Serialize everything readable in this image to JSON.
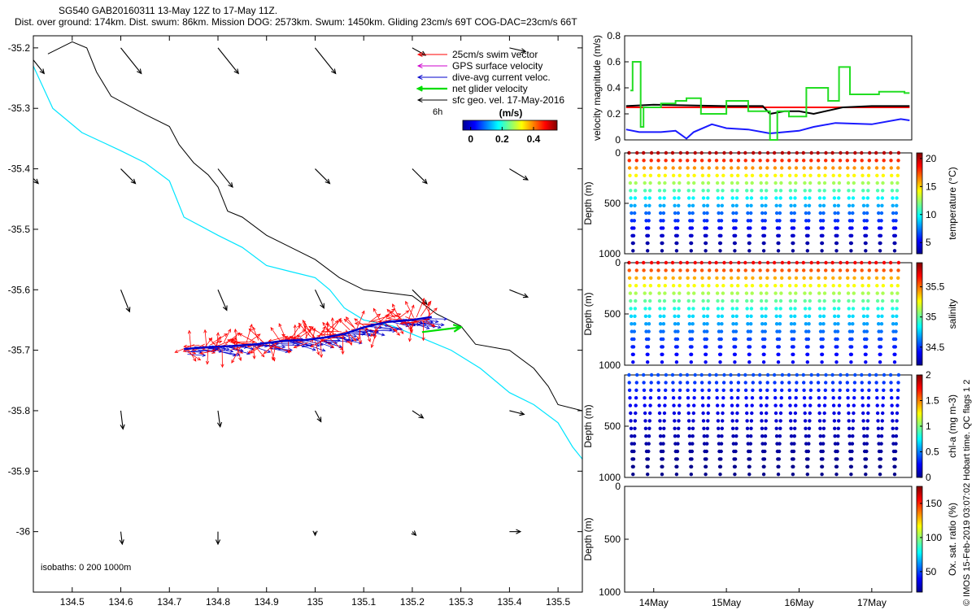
{
  "header": {
    "line1": "SG540 GAB20160311 13-May 12Z to 17-May 11Z.",
    "line2": "Dist. over ground: 174km. Dist. swum: 86km. Mission DOG: 2573km. Swum: 1450km. Gliding 23cm/s 69T COG-DAC=23cm/s 66T"
  },
  "colors": {
    "swim": "#ff0000",
    "gps": "#cc00cc",
    "dac": "#0000cc",
    "net": "#00dd00",
    "geo": "#000000",
    "isobath200": "#00e5ff",
    "isobath1000": "#000000",
    "vel_red": "#ff0000",
    "vel_black": "#000000",
    "vel_blue": "#1a1aff",
    "vel_green": "#22dd22"
  },
  "chart_data": [
    {
      "type": "scatter",
      "name": "map",
      "xlim": [
        134.42,
        135.55
      ],
      "ylim": [
        -36.1,
        -35.18
      ],
      "xticks": [
        134.5,
        134.6,
        134.7,
        134.8,
        134.9,
        135.0,
        135.1,
        135.2,
        135.3,
        135.4,
        135.5
      ],
      "xtick_labels": [
        "134.5",
        "134.6",
        "134.7",
        "134.8",
        "134.9",
        "135",
        "135.1",
        "135.2",
        "135.3",
        "135.4",
        "135.5"
      ],
      "yticks": [
        -35.2,
        -35.3,
        -35.4,
        -35.5,
        -35.6,
        -35.7,
        -35.8,
        -35.9,
        -36.0
      ],
      "ytick_labels": [
        "-35.2",
        "-35.3",
        "-35.4",
        "-35.5",
        "-35.6",
        "-35.7",
        "-35.8",
        "-35.9",
        "-36"
      ],
      "legend": {
        "position": "top-right",
        "entries": [
          {
            "label": "25cm/s swim vector",
            "color_key": "swim"
          },
          {
            "label": "GPS surface velocity",
            "color_key": "gps"
          },
          {
            "label": "dive-avg current veloc.",
            "color_key": "dac"
          },
          {
            "label": "net glider velocity",
            "color_key": "net"
          },
          {
            "label": "sfc geo. vel. 17-May-2016",
            "color_key": "geo"
          }
        ],
        "scale_label": "6h"
      },
      "colorbar": {
        "title": "(m/s)",
        "ticks": [
          0,
          0.2,
          0.4
        ],
        "tick_labels": [
          "0",
          "0.2",
          "0.4"
        ],
        "range": [
          -0.05,
          0.55
        ]
      },
      "isobath_label": "isobaths: 0   200  1000m",
      "isobath_200m": [
        [
          134.42,
          -35.23
        ],
        [
          134.46,
          -35.3
        ],
        [
          134.52,
          -35.34
        ],
        [
          134.6,
          -35.37
        ],
        [
          134.65,
          -35.39
        ],
        [
          134.7,
          -35.42
        ],
        [
          134.73,
          -35.48
        ],
        [
          134.8,
          -35.51
        ],
        [
          134.85,
          -35.53
        ],
        [
          134.9,
          -35.56
        ],
        [
          134.95,
          -35.57
        ],
        [
          135.0,
          -35.58
        ],
        [
          135.03,
          -35.6
        ],
        [
          135.06,
          -35.63
        ],
        [
          135.1,
          -35.65
        ],
        [
          135.16,
          -35.66
        ],
        [
          135.22,
          -35.68
        ],
        [
          135.28,
          -35.7
        ],
        [
          135.34,
          -35.73
        ],
        [
          135.4,
          -35.77
        ],
        [
          135.45,
          -35.79
        ],
        [
          135.5,
          -35.82
        ],
        [
          135.53,
          -35.86
        ],
        [
          135.55,
          -35.88
        ]
      ],
      "isobath_1000m": [
        [
          134.45,
          -35.21
        ],
        [
          134.5,
          -35.19
        ],
        [
          134.53,
          -35.2
        ],
        [
          134.55,
          -35.24
        ],
        [
          134.58,
          -35.28
        ],
        [
          134.65,
          -35.31
        ],
        [
          134.7,
          -35.33
        ],
        [
          134.72,
          -35.36
        ],
        [
          134.75,
          -35.39
        ],
        [
          134.78,
          -35.41
        ],
        [
          134.8,
          -35.43
        ],
        [
          134.82,
          -35.47
        ],
        [
          134.85,
          -35.48
        ],
        [
          134.9,
          -35.51
        ],
        [
          134.95,
          -35.53
        ],
        [
          135.0,
          -35.55
        ],
        [
          135.05,
          -35.58
        ],
        [
          135.1,
          -35.6
        ],
        [
          135.2,
          -35.61
        ],
        [
          135.25,
          -35.64
        ],
        [
          135.3,
          -35.66
        ],
        [
          135.33,
          -35.69
        ],
        [
          135.4,
          -35.7
        ],
        [
          135.45,
          -35.73
        ],
        [
          135.48,
          -35.76
        ],
        [
          135.5,
          -35.79
        ],
        [
          135.55,
          -35.8
        ]
      ],
      "glider_track": [
        [
          134.73,
          -35.698
        ],
        [
          134.78,
          -35.695
        ],
        [
          134.83,
          -35.693
        ],
        [
          134.88,
          -35.69
        ],
        [
          134.93,
          -35.685
        ],
        [
          134.98,
          -35.683
        ],
        [
          135.02,
          -35.679
        ],
        [
          135.06,
          -35.673
        ],
        [
          135.1,
          -35.662
        ],
        [
          135.15,
          -35.653
        ],
        [
          135.2,
          -35.65
        ],
        [
          135.24,
          -35.645
        ]
      ],
      "net_velocity_arrow": {
        "from": [
          135.22,
          -35.67
        ],
        "to": [
          135.3,
          -35.662
        ]
      },
      "geo_vectors_grid": {
        "lons": [
          134.4,
          134.6,
          134.8,
          135.0,
          135.2,
          135.4
        ],
        "lats": [
          -35.2,
          -35.4,
          -35.6,
          -35.8,
          -36.0
        ],
        "u": [
          [
            0.28,
            0.28,
            0.28,
            0.28,
            0.18,
            0.22
          ],
          [
            0.2,
            0.2,
            0.2,
            0.2,
            0.2,
            0.25
          ],
          [
            0.1,
            0.12,
            0.12,
            0.12,
            0.2,
            0.25
          ],
          [
            0.05,
            0.03,
            0.03,
            0.08,
            0.15,
            0.2
          ],
          [
            0.0,
            0.02,
            0.0,
            0.0,
            0.05,
            0.15
          ]
        ],
        "v": [
          [
            -0.35,
            -0.35,
            -0.35,
            -0.35,
            -0.1,
            -0.05
          ],
          [
            -0.2,
            -0.2,
            -0.25,
            -0.2,
            -0.2,
            -0.15
          ],
          [
            -0.25,
            -0.3,
            -0.28,
            -0.25,
            -0.2,
            -0.1
          ],
          [
            -0.2,
            -0.25,
            -0.22,
            -0.15,
            -0.1,
            -0.05
          ],
          [
            -0.15,
            -0.17,
            -0.17,
            -0.05,
            -0.05,
            0.0
          ]
        ]
      }
    },
    {
      "type": "line",
      "name": "velocity-magnitude",
      "ylabel": "velocity magnitude (m/s)",
      "xlim": [
        13.6,
        17.55
      ],
      "ylim": [
        0,
        0.8
      ],
      "yticks": [
        0,
        0.2,
        0.4,
        0.6,
        0.8
      ],
      "ytick_labels": [
        "0",
        "0.2",
        "0.4",
        "0.6",
        "0.8"
      ],
      "series": [
        {
          "color_key": "vel_red",
          "x": [
            13.62,
            17.52
          ],
          "values": [
            0.25,
            0.25
          ]
        },
        {
          "color_key": "vel_black",
          "x": [
            13.62,
            14.0,
            15.0,
            15.5,
            15.6,
            15.8,
            16.0,
            16.2,
            16.6,
            17.0,
            17.52
          ],
          "values": [
            0.26,
            0.27,
            0.26,
            0.26,
            0.2,
            0.22,
            0.22,
            0.2,
            0.25,
            0.26,
            0.26
          ]
        },
        {
          "color_key": "vel_blue",
          "x": [
            13.62,
            13.8,
            14.1,
            14.3,
            14.45,
            14.55,
            14.8,
            15.0,
            15.3,
            15.6,
            16.0,
            16.2,
            16.5,
            17.0,
            17.4,
            17.52
          ],
          "values": [
            0.08,
            0.06,
            0.06,
            0.07,
            0.01,
            0.06,
            0.12,
            0.09,
            0.08,
            0.05,
            0.07,
            0.1,
            0.13,
            0.12,
            0.16,
            0.15
          ]
        },
        {
          "color_key": "vel_green",
          "x": [
            13.68,
            13.71,
            13.71,
            13.82,
            13.82,
            13.86,
            13.86,
            14.1,
            14.1,
            14.3,
            14.3,
            14.45,
            14.45,
            14.65,
            14.65,
            15.0,
            15.0,
            15.3,
            15.3,
            15.6,
            15.6,
            15.7,
            15.7,
            15.86,
            15.86,
            16.1,
            16.1,
            16.4,
            16.4,
            16.55,
            16.55,
            16.7,
            16.7,
            17.1,
            17.1,
            17.45,
            17.45,
            17.52
          ],
          "values": [
            0.38,
            0.38,
            0.6,
            0.6,
            0.1,
            0.1,
            0.25,
            0.25,
            0.28,
            0.28,
            0.3,
            0.3,
            0.32,
            0.32,
            0.2,
            0.2,
            0.3,
            0.3,
            0.22,
            0.22,
            0.0,
            0.0,
            0.22,
            0.22,
            0.18,
            0.18,
            0.4,
            0.4,
            0.3,
            0.3,
            0.56,
            0.56,
            0.35,
            0.35,
            0.37,
            0.37,
            0.36,
            0.36
          ]
        }
      ]
    },
    {
      "type": "scatter",
      "name": "temperature-profile",
      "ylabel": "Depth (m)",
      "colorbar_label": "temperature (°C)",
      "ylim": [
        1000,
        0
      ],
      "yticks": [
        0,
        500,
        1000
      ],
      "ytick_labels": [
        "0",
        "500",
        "1000"
      ],
      "colorbar_range": [
        3,
        21
      ],
      "colorbar_ticks": [
        5,
        10,
        15,
        20
      ],
      "colorbar_tick_labels": [
        "5",
        "10",
        "15",
        "20"
      ],
      "profile": {
        "start_day": 13.66,
        "cycle_days": 0.2,
        "n_dives": 19,
        "max_depth_m": 970,
        "surface_value": 20,
        "deep_value": 3.5
      }
    },
    {
      "type": "scatter",
      "name": "salinity-profile",
      "ylabel": "Depth (m)",
      "colorbar_label": "salinity",
      "ylim": [
        1000,
        0
      ],
      "yticks": [
        0,
        500,
        1000
      ],
      "ytick_labels": [
        "0",
        "500",
        "1000"
      ],
      "colorbar_range": [
        34.2,
        35.9
      ],
      "colorbar_ticks": [
        34.5,
        35,
        35.5
      ],
      "colorbar_tick_labels": [
        "34.5",
        "35",
        "35.5"
      ],
      "profile": {
        "start_day": 13.66,
        "cycle_days": 0.2,
        "n_dives": 19,
        "max_depth_m": 970,
        "surface_value": 35.7,
        "deep_value": 34.4
      }
    },
    {
      "type": "scatter",
      "name": "chlorophyll-profile",
      "ylabel": "Depth (m)",
      "colorbar_label": "chl-a (mg m-3)",
      "ylim": [
        1000,
        0
      ],
      "yticks": [
        500,
        1000
      ],
      "ytick_labels": [
        "500",
        "1000"
      ],
      "colorbar_range": [
        0,
        2
      ],
      "colorbar_ticks": [
        0,
        0.5,
        1,
        1.5,
        2
      ],
      "colorbar_tick_labels": [
        "0",
        "0.5",
        "1",
        "1.5",
        "2"
      ],
      "profile": {
        "start_day": 13.66,
        "cycle_days": 0.2,
        "n_dives": 19,
        "max_depth_m": 970,
        "surface_value": 0.4,
        "deep_value": 0.02
      }
    },
    {
      "type": "scatter",
      "name": "oxygen-profile",
      "ylabel": "Depth (m)",
      "colorbar_label": "Ox. sat. ratio (%)",
      "ylim": [
        1000,
        0
      ],
      "yticks": [
        0,
        500,
        1000
      ],
      "ytick_labels": [
        "0",
        "500",
        "1000"
      ],
      "colorbar_range": [
        20,
        175
      ],
      "colorbar_ticks": [
        50,
        100,
        150
      ],
      "colorbar_tick_labels": [
        "50",
        "100",
        "150"
      ],
      "xlim": [
        13.6,
        17.55
      ],
      "xticks": [
        14,
        15,
        16,
        17
      ],
      "xtick_labels": [
        "14May",
        "15May",
        "16May",
        "17May"
      ]
    }
  ],
  "footer_vertical": "© IMOS 15-Feb-2019 03:07:02 Hobart time. QC flags 1  2"
}
